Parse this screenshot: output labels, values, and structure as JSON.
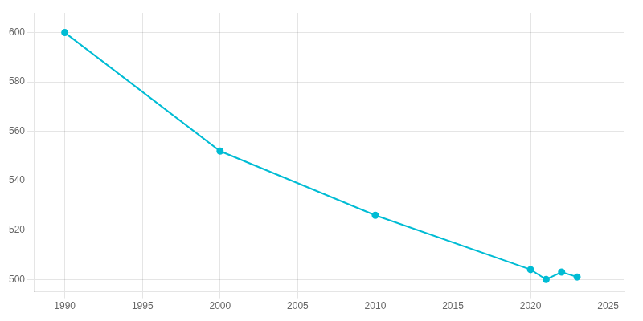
{
  "chart_data": {
    "type": "line",
    "x": [
      1990,
      2000,
      2010,
      2020,
      2021,
      2022,
      2023
    ],
    "values": [
      600,
      552,
      526,
      504,
      500,
      503,
      501
    ],
    "color": "#00bcd4",
    "marker": "circle",
    "xlim": [
      1988,
      2026
    ],
    "xticks": [
      1990,
      1995,
      2000,
      2005,
      2010,
      2015,
      2020,
      2025
    ],
    "ylim": [
      495,
      608
    ],
    "yticks": [
      500,
      520,
      540,
      560,
      580,
      600
    ],
    "grid": true
  }
}
